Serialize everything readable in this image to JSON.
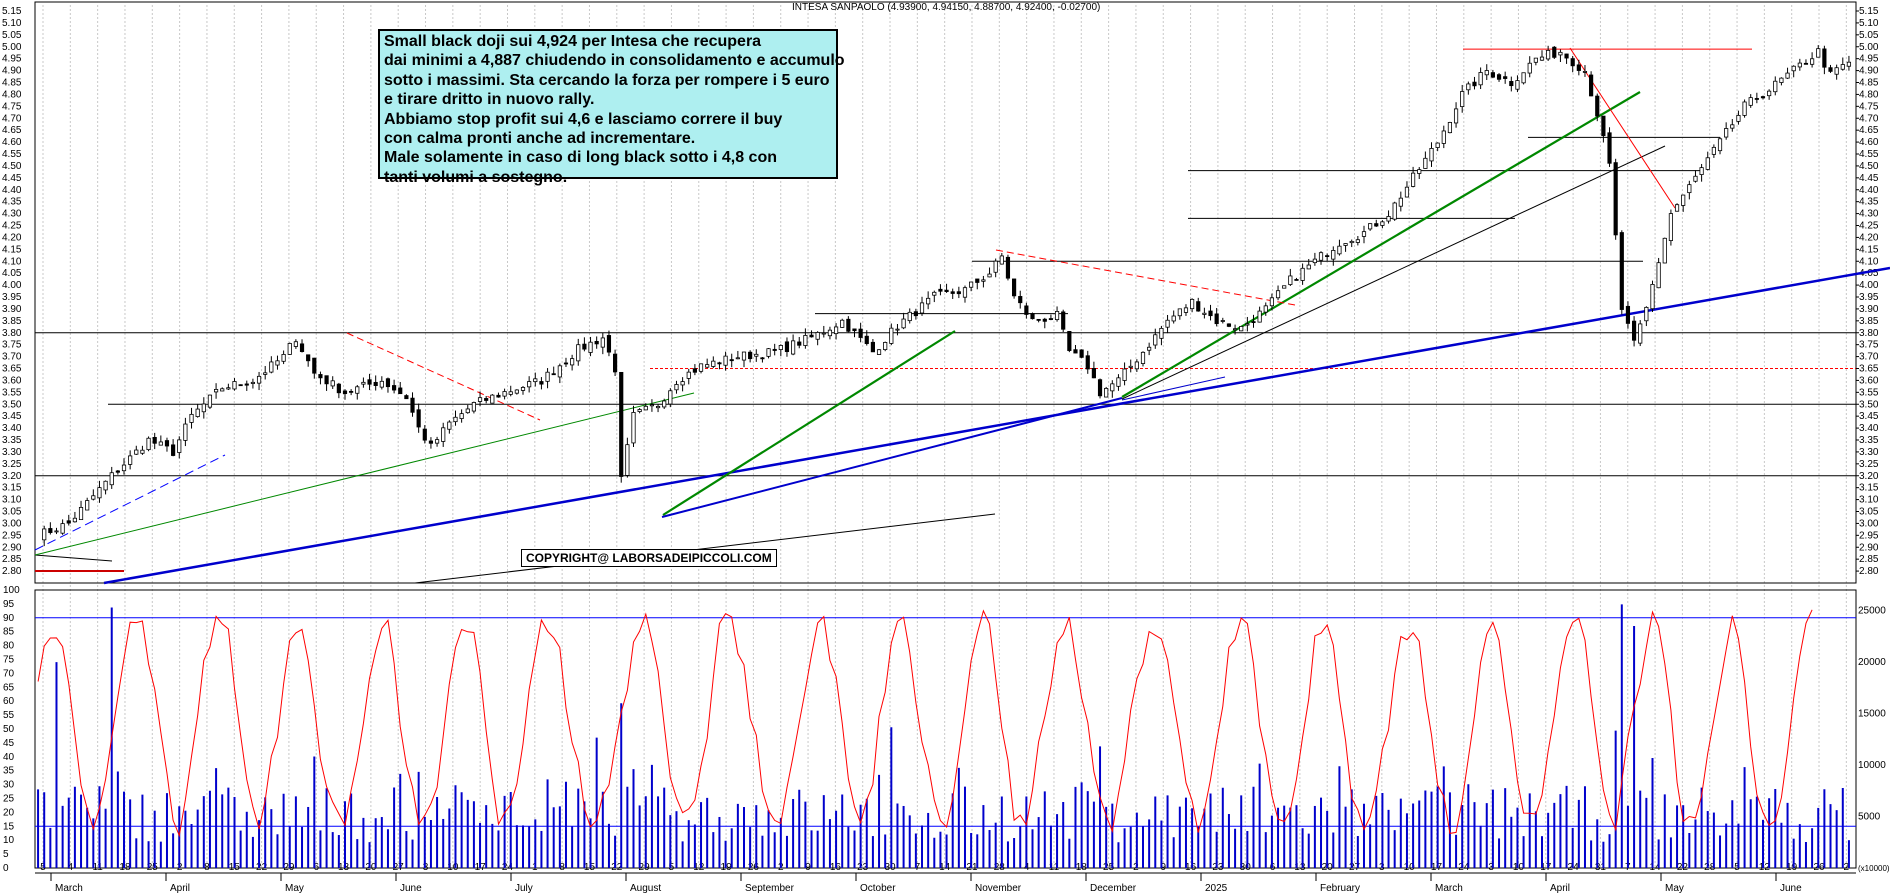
{
  "chart_data": {
    "type": "candlestick",
    "title": "INTESA SANPAOLO",
    "ohlc_readout": "(4.93900, 4.94150, 4.88700, 4.92400, -0.02700)",
    "price_axis": {
      "ylim": [
        2.75,
        5.15
      ],
      "ticks": [
        "5.15",
        "5.10",
        "5.05",
        "5.00",
        "4.95",
        "4.90",
        "4.85",
        "4.80",
        "4.75",
        "4.70",
        "4.65",
        "4.60",
        "4.55",
        "4.50",
        "4.45",
        "4.40",
        "4.35",
        "4.30",
        "4.25",
        "4.20",
        "4.15",
        "4.10",
        "4.05",
        "4.00",
        "3.95",
        "3.90",
        "3.85",
        "3.80",
        "3.75",
        "3.70",
        "3.65",
        "3.60",
        "3.55",
        "3.50",
        "3.45",
        "3.40",
        "3.35",
        "3.30",
        "3.25",
        "3.20",
        "3.15",
        "3.10",
        "3.05",
        "3.00",
        "2.95",
        "2.90",
        "2.85",
        "2.80"
      ]
    },
    "oscillator_axis": {
      "ylim": [
        0,
        100
      ],
      "ticks": [
        "100",
        "95",
        "90",
        "85",
        "80",
        "75",
        "70",
        "65",
        "60",
        "55",
        "50",
        "45",
        "40",
        "35",
        "30",
        "25",
        "20",
        "15",
        "10",
        "5",
        "0"
      ],
      "levels": [
        90,
        15
      ]
    },
    "volume_axis": {
      "ticks": [
        "25000",
        "20000",
        "15000",
        "10000",
        "5000"
      ],
      "unit_label": "(x10000)"
    },
    "x_axis": {
      "day_ticks": [
        "5",
        "4",
        "11",
        "18",
        "25",
        "2",
        "8",
        "15",
        "22",
        "29",
        "6",
        "13",
        "20",
        "27",
        "3",
        "10",
        "17",
        "24",
        "1",
        "8",
        "15",
        "22",
        "29",
        "5",
        "12",
        "19",
        "26",
        "2",
        "9",
        "16",
        "23",
        "30",
        "7",
        "14",
        "21",
        "28",
        "4",
        "11",
        "18",
        "25",
        "2",
        "9",
        "16",
        "23",
        "30",
        "6",
        "13",
        "20",
        "27",
        "3",
        "10",
        "17",
        "24",
        "3",
        "10",
        "17",
        "24",
        "31",
        "7",
        "14",
        "22",
        "28",
        "5",
        "12",
        "19",
        "26",
        "2"
      ],
      "month_labels": [
        "March",
        "April",
        "May",
        "June",
        "July",
        "August",
        "September",
        "October",
        "November",
        "December",
        "2025",
        "February",
        "March",
        "April",
        "May",
        "June"
      ]
    },
    "series": [
      {
        "name": "Price (daily candles)",
        "anchors": [
          [
            0,
            2.95
          ],
          [
            5,
            3.0
          ],
          [
            12,
            3.2
          ],
          [
            18,
            3.35
          ],
          [
            22,
            3.3
          ],
          [
            25,
            3.45
          ],
          [
            30,
            3.57
          ],
          [
            35,
            3.6
          ],
          [
            40,
            3.7
          ],
          [
            42,
            3.78
          ],
          [
            45,
            3.63
          ],
          [
            50,
            3.55
          ],
          [
            56,
            3.6
          ],
          [
            60,
            3.53
          ],
          [
            62,
            3.4
          ],
          [
            64,
            3.32
          ],
          [
            67,
            3.42
          ],
          [
            71,
            3.5
          ],
          [
            76,
            3.55
          ],
          [
            82,
            3.6
          ],
          [
            88,
            3.73
          ],
          [
            92,
            3.78
          ],
          [
            94,
            3.65
          ],
          [
            95,
            3.18
          ],
          [
            97,
            3.45
          ],
          [
            101,
            3.5
          ],
          [
            104,
            3.6
          ],
          [
            108,
            3.66
          ],
          [
            114,
            3.7
          ],
          [
            120,
            3.72
          ],
          [
            126,
            3.78
          ],
          [
            131,
            3.85
          ],
          [
            136,
            3.72
          ],
          [
            140,
            3.83
          ],
          [
            146,
            3.95
          ],
          [
            151,
            3.98
          ],
          [
            155,
            4.05
          ],
          [
            157,
            4.12
          ],
          [
            159,
            3.95
          ],
          [
            162,
            3.85
          ],
          [
            166,
            3.87
          ],
          [
            168,
            3.72
          ],
          [
            171,
            3.66
          ],
          [
            173,
            3.55
          ],
          [
            176,
            3.6
          ],
          [
            180,
            3.72
          ],
          [
            184,
            3.85
          ],
          [
            188,
            3.93
          ],
          [
            192,
            3.85
          ],
          [
            196,
            3.82
          ],
          [
            200,
            3.9
          ],
          [
            204,
            4.02
          ],
          [
            208,
            4.1
          ],
          [
            212,
            4.18
          ],
          [
            216,
            4.22
          ],
          [
            220,
            4.3
          ],
          [
            224,
            4.45
          ],
          [
            228,
            4.6
          ],
          [
            232,
            4.8
          ],
          [
            236,
            4.9
          ],
          [
            240,
            4.85
          ],
          [
            244,
            4.95
          ],
          [
            248,
            4.98
          ],
          [
            252,
            4.9
          ],
          [
            254,
            4.72
          ],
          [
            256,
            4.5
          ],
          [
            258,
            3.9
          ],
          [
            260,
            3.75
          ],
          [
            262,
            3.9
          ],
          [
            264,
            4.1
          ],
          [
            266,
            4.3
          ],
          [
            270,
            4.45
          ],
          [
            274,
            4.6
          ],
          [
            278,
            4.75
          ],
          [
            282,
            4.82
          ],
          [
            286,
            4.9
          ],
          [
            290,
            4.98
          ],
          [
            292,
            4.88
          ],
          [
            294,
            4.92
          ]
        ]
      },
      {
        "name": "Oscillator (stochastic)",
        "levels": [
          90,
          15
        ]
      },
      {
        "name": "Volume",
        "unit": "x10000"
      }
    ],
    "annotations": {
      "text_box": [
        "Small black doji sui 4,924 per Intesa che recupera",
        "dai minimi a 4,887 chiudendo in consolidamento e accumulo",
        "sotto i massimi. Sta cercando la forza per rompere i 5 euro",
        "e tirare dritto in nuovo rally.",
        "Abbiamo stop profit sui 4,6 e lasciamo correre il buy",
        "con calma pronti anche ad incrementare.",
        "Male solamente in caso di long black sotto i 4,8 con",
        "tanti volumi a sostegno."
      ],
      "copyright": "COPYRIGHT@ LABORSADEIPICCOLI.COM",
      "horizontal_levels": [
        3.8,
        3.5,
        3.2,
        3.65,
        3.88,
        4.1,
        4.28,
        4.48,
        4.62,
        4.99
      ]
    }
  }
}
